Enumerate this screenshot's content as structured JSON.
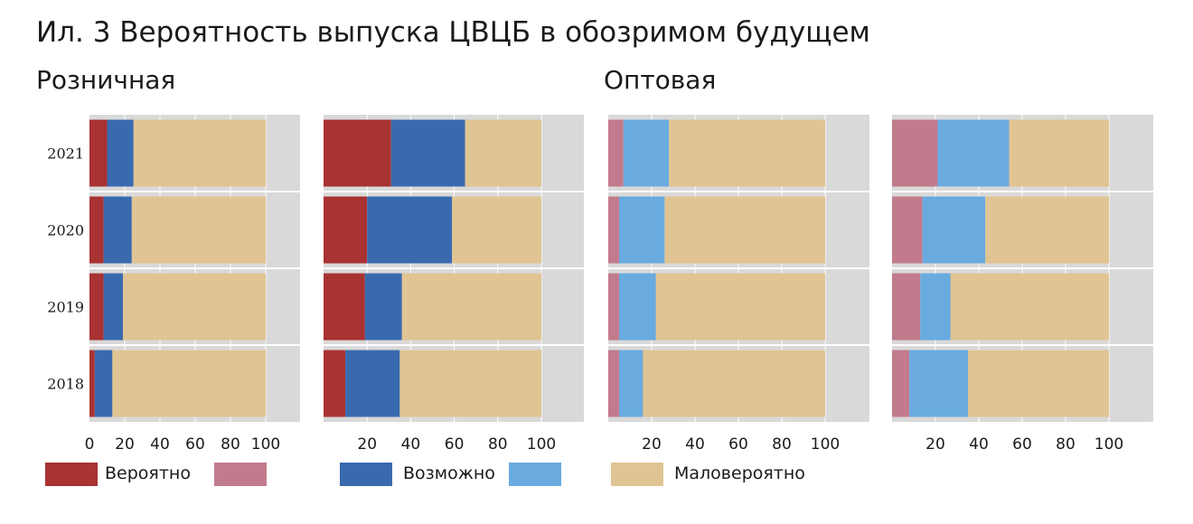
{
  "title": "Ил. 3 Вероятность выпуска ЦВЦБ в обозримом будущем",
  "groups": [
    "Розничная",
    "Оптовая"
  ],
  "legend": {
    "likely": "Вероятно",
    "possible": "Возможно",
    "unlikely": "Маловероятно"
  },
  "colors": {
    "likely_dark": "#A93232",
    "likely_light": "#C17B8C",
    "possible_dark": "#3A6AAE",
    "possible_light": "#6AABDF",
    "unlikely": "#E1C493",
    "panel_bg": "#D9D9D9",
    "grid": "#FFFFFF"
  },
  "chart_data": [
    {
      "type": "bar",
      "orientation": "horizontal",
      "stacked": true,
      "group": "Розничная",
      "categories": [
        "2021",
        "2020",
        "2019",
        "2018"
      ],
      "series": [
        {
          "name": "Вероятно",
          "values": [
            10,
            8,
            8,
            3
          ]
        },
        {
          "name": "Возможно",
          "values": [
            15,
            16,
            11,
            10
          ]
        },
        {
          "name": "Маловероятно",
          "values": [
            75,
            76,
            81,
            87
          ]
        }
      ],
      "xticks": [
        "0",
        "20",
        "40",
        "60",
        "80",
        "100"
      ],
      "xlim": [
        0,
        100
      ]
    },
    {
      "type": "bar",
      "orientation": "horizontal",
      "stacked": true,
      "group": "Розничная",
      "categories": [
        "2021",
        "2020",
        "2019",
        "2018"
      ],
      "series": [
        {
          "name": "Вероятно",
          "values": [
            31,
            20,
            19,
            10
          ]
        },
        {
          "name": "Возможно",
          "values": [
            34,
            39,
            17,
            25
          ]
        },
        {
          "name": "Маловероятно",
          "values": [
            35,
            41,
            64,
            65
          ]
        }
      ],
      "xticks": [
        "20",
        "40",
        "60",
        "80",
        "100"
      ],
      "xlim": [
        0,
        100
      ]
    },
    {
      "type": "bar",
      "orientation": "horizontal",
      "stacked": true,
      "group": "Оптовая",
      "categories": [
        "2021",
        "2020",
        "2019",
        "2018"
      ],
      "series": [
        {
          "name": "",
          "values": [
            7,
            5,
            5,
            5
          ]
        },
        {
          "name": "",
          "values": [
            21,
            21,
            17,
            11
          ]
        },
        {
          "name": "Маловероятно",
          "values": [
            72,
            74,
            78,
            84
          ]
        }
      ],
      "xticks": [
        "20",
        "40",
        "60",
        "80",
        "100"
      ],
      "xlim": [
        0,
        100
      ]
    },
    {
      "type": "bar",
      "orientation": "horizontal",
      "stacked": true,
      "group": "Оптовая",
      "categories": [
        "2021",
        "2020",
        "2019",
        "2018"
      ],
      "series": [
        {
          "name": "",
          "values": [
            21,
            14,
            13,
            8
          ]
        },
        {
          "name": "",
          "values": [
            33,
            29,
            14,
            27
          ]
        },
        {
          "name": "Маловероятно",
          "values": [
            46,
            57,
            73,
            65
          ]
        }
      ],
      "xticks": [
        "20",
        "40",
        "60",
        "80",
        "100"
      ],
      "xlim": [
        0,
        100
      ]
    }
  ]
}
